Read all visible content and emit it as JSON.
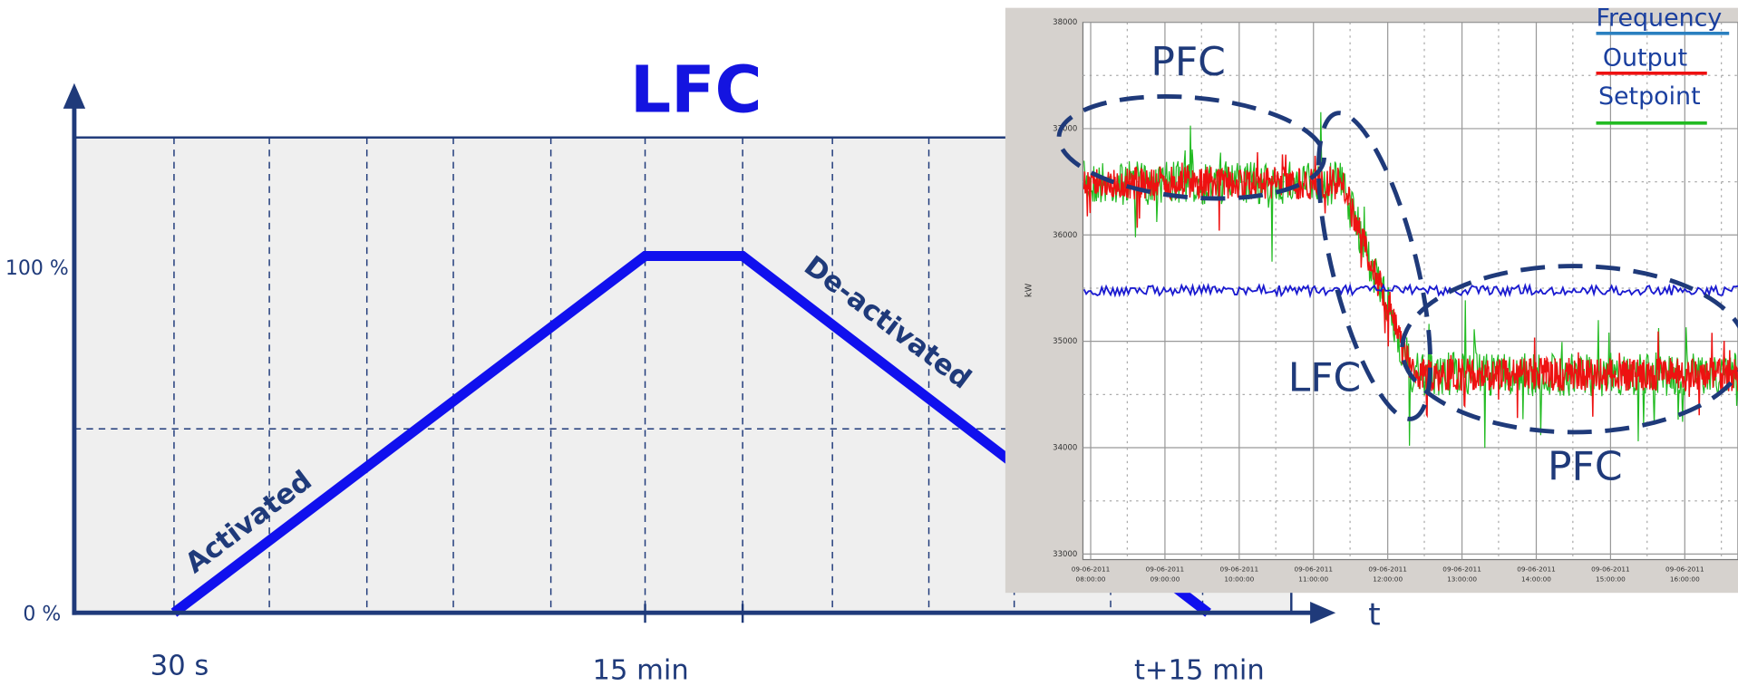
{
  "title": "LFC",
  "y_labels": [
    "100 %",
    "0 %"
  ],
  "x_labels": [
    "30 s",
    "15 min",
    "t+15 min"
  ],
  "x_axis_label": "t",
  "curve_labels": [
    "Activated",
    "De-activated"
  ],
  "inset": {
    "legend": [
      "Frequency",
      "Output",
      "Setpoint"
    ],
    "annotations": [
      "PFC",
      "LFC",
      "PFC"
    ],
    "y_axis_label": "kW",
    "y_ticks": [
      "38000",
      "37000",
      "36000",
      "35000",
      "34000",
      "33000"
    ],
    "x_ticks": [
      {
        "date": "09-06-2011",
        "time": "08:00:00"
      },
      {
        "date": "09-06-2011",
        "time": "09:00:00"
      },
      {
        "date": "09-06-2011",
        "time": "10:00:00"
      },
      {
        "date": "09-06-2011",
        "time": "11:00:00"
      },
      {
        "date": "09-06-2011",
        "time": "12:00:00"
      },
      {
        "date": "09-06-2011",
        "time": "13:00:00"
      },
      {
        "date": "09-06-2011",
        "time": "14:00:00"
      },
      {
        "date": "09-06-2011",
        "time": "15:00:00"
      },
      {
        "date": "09-06-2011",
        "time": "16:00:00"
      }
    ]
  }
}
